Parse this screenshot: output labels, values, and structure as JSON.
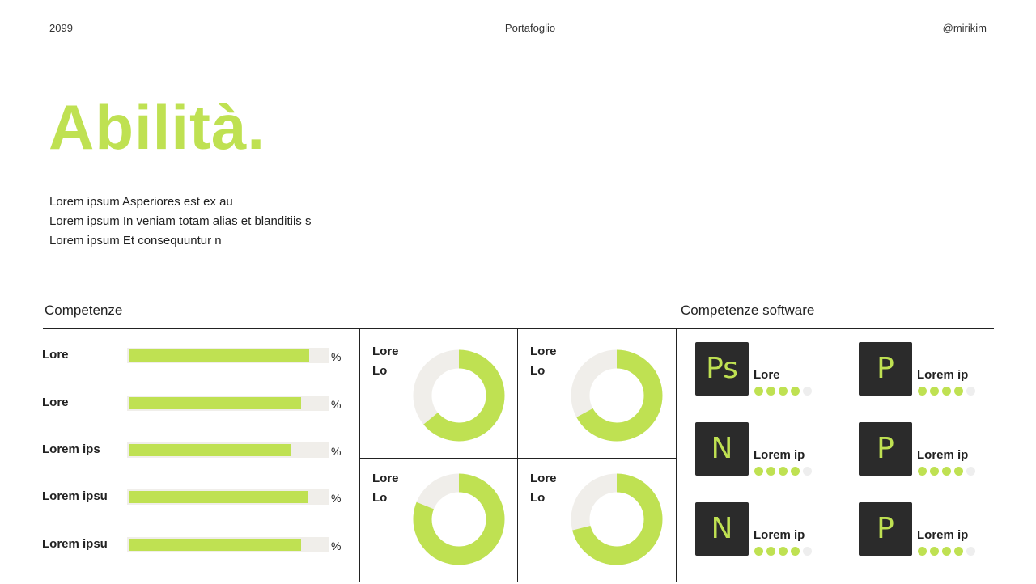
{
  "header": {
    "left": "2099",
    "center": "Portafoglio",
    "right": "@mirikim"
  },
  "title": "Abilità.",
  "intro_lines": [
    "Lorem ipsum Asperiores est ex au",
    "Lorem ipsum In veniam totam alias et blanditiis s",
    "Lorem ipsum Et consequuntur n"
  ],
  "sections": {
    "skills": "Competenze",
    "software": "Competenze software"
  },
  "colors": {
    "accent": "#bfe152",
    "track": "#f0eeea",
    "tile": "#2b2b2b",
    "dot_empty": "#eeeeee",
    "text": "#222222"
  },
  "skill_bars": [
    {
      "label": "Lore",
      "value": 0.91,
      "pct_symbol": "%"
    },
    {
      "label": "Lore",
      "value": 0.87,
      "pct_symbol": "%"
    },
    {
      "label": "Lorem ips",
      "value": 0.82,
      "pct_symbol": "%"
    },
    {
      "label": "Lorem ipsu",
      "value": 0.9,
      "pct_symbol": "%"
    },
    {
      "label": "Lorem ipsu",
      "value": 0.87,
      "pct_symbol": "%"
    }
  ],
  "donuts": [
    {
      "line1": "Lore",
      "line2": "Lo",
      "value": 0.64
    },
    {
      "line1": "Lore",
      "line2": "Lo",
      "value": 0.67
    },
    {
      "line1": "Lore",
      "line2": "Lo",
      "value": 0.81
    },
    {
      "line1": "Lore",
      "line2": "Lo",
      "value": 0.71
    }
  ],
  "software": [
    {
      "icon": "Ps",
      "icon_name": "photoshop-icon",
      "name": "Lore",
      "rating": 4,
      "max": 5
    },
    {
      "icon": "P",
      "icon_name": "p-app-icon",
      "name": "Lorem ip",
      "rating": 4,
      "max": 5
    },
    {
      "icon": "N",
      "icon_name": "n-app-icon",
      "name": "Lorem ip",
      "rating": 4,
      "max": 5
    },
    {
      "icon": "P",
      "icon_name": "p-app-icon",
      "name": "Lorem ip",
      "rating": 4,
      "max": 5
    },
    {
      "icon": "N",
      "icon_name": "n-app-icon",
      "name": "Lorem ip",
      "rating": 4,
      "max": 5
    },
    {
      "icon": "P",
      "icon_name": "p-app-icon",
      "name": "Lorem ip",
      "rating": 4,
      "max": 5
    }
  ]
}
